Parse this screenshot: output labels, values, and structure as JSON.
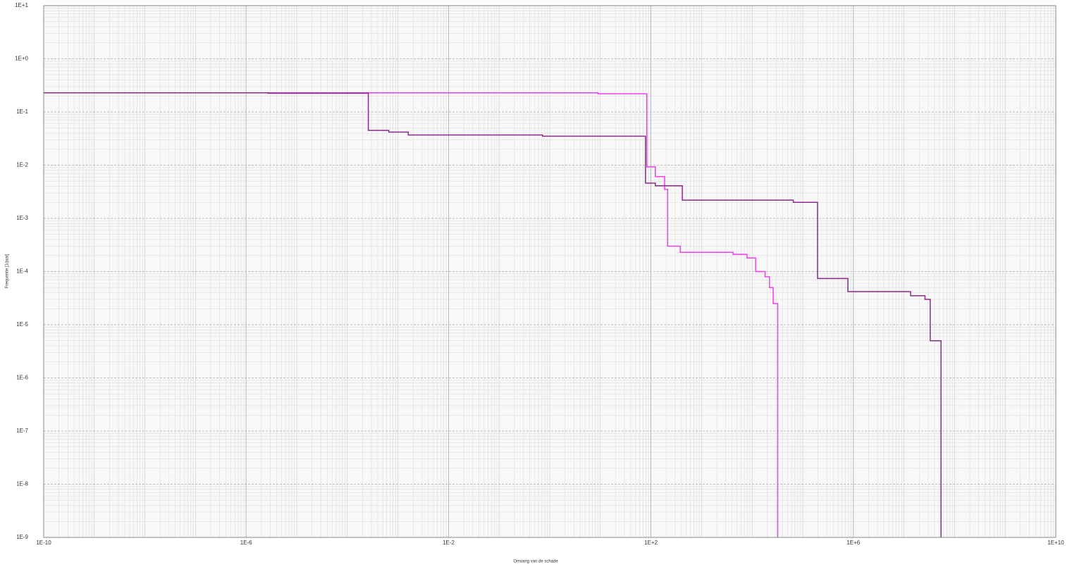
{
  "chart_data": {
    "type": "line",
    "step": "post",
    "log_x": true,
    "log_y": true,
    "grid": true,
    "x_label": "Omvang van de schade",
    "y_label": "Frequentie [1/jaar]",
    "xlim": [
      1e-10,
      10000000000.0
    ],
    "xticks": [
      {
        "value": 1e-10,
        "label": "1E-10"
      },
      {
        "value": 1e-06,
        "label": "1E-6"
      },
      {
        "value": 0.01,
        "label": "1E-2"
      },
      {
        "value": 100,
        "label": "1E+2"
      },
      {
        "value": 1000000.0,
        "label": "1E+6"
      },
      {
        "value": 10000000000.0,
        "label": "1E+10"
      }
    ],
    "ylim": [
      1e-09,
      10
    ],
    "yticks": [
      {
        "value": 10,
        "label": "1E+1"
      },
      {
        "value": 1,
        "label": "1E+0"
      },
      {
        "value": 0.1,
        "label": "1E-1"
      },
      {
        "value": 0.01,
        "label": "1E-2"
      },
      {
        "value": 0.001,
        "label": "1E-3"
      },
      {
        "value": 0.0001,
        "label": "1E-4"
      },
      {
        "value": 1e-05,
        "label": "1E-5"
      },
      {
        "value": 1e-06,
        "label": "1E-6"
      },
      {
        "value": 1e-07,
        "label": "1E-7"
      },
      {
        "value": 1e-08,
        "label": "1E-8"
      },
      {
        "value": 1e-09,
        "label": "1E-9"
      }
    ],
    "series": [
      {
        "color": "#f23cf2",
        "x": [
          1e-10,
          9,
          83,
          122,
          186,
          214,
          380,
          4200,
          7900,
          11700,
          18000,
          22000,
          26000,
          32000
        ],
        "values": [
          0.23,
          0.22,
          0.0093,
          0.0061,
          0.0035,
          0.0003,
          0.00023,
          0.00021,
          0.00018,
          0.0001,
          8e-05,
          5e-05,
          2.5e-05,
          1e-09
        ]
      },
      {
        "color": "#8b2a8b",
        "x": [
          1e-10,
          2.7e-06,
          0.00026,
          0.00066,
          0.0016,
          0.72,
          78,
          122,
          417,
          65000,
          196000,
          780000,
          13500000,
          26000000,
          33000000,
          54000000
        ],
        "values": [
          0.23,
          0.225,
          0.045,
          0.042,
          0.037,
          0.035,
          0.0046,
          0.0041,
          0.0022,
          0.002,
          7.4e-05,
          4.2e-05,
          3.5e-05,
          3e-05,
          5e-06,
          1e-09
        ]
      }
    ]
  }
}
